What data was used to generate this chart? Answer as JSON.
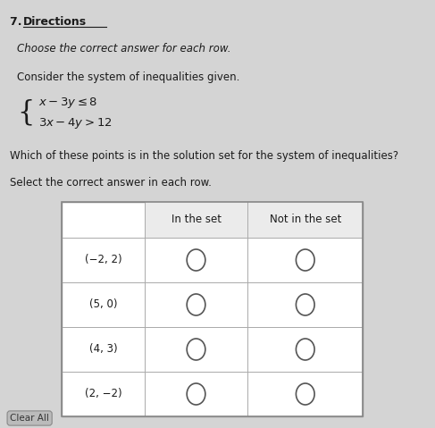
{
  "background_color": "#d4d4d4",
  "title_number": "7. ",
  "title_label": "Directions",
  "subtitle": "Choose the correct answer for each row.",
  "problem_intro": "Consider the system of inequalities given.",
  "inequality1": "$x - 3y \\leq 8$",
  "inequality2": "$3x - 4y > 12$",
  "question": "Which of these points is in the solution set for the system of inequalities?",
  "instruction": "Select the correct answer in each row.",
  "col_headers": [
    "In the set",
    "Not in the set"
  ],
  "rows": [
    "(−2, 2)",
    "(5, 0)",
    "(4, 3)",
    "(2, −2)"
  ],
  "table_bg": "#ffffff",
  "circle_color": "#555555",
  "text_color": "#1a1a1a",
  "font_size_title": 9,
  "font_size_body": 8.5,
  "font_size_table": 8.5
}
